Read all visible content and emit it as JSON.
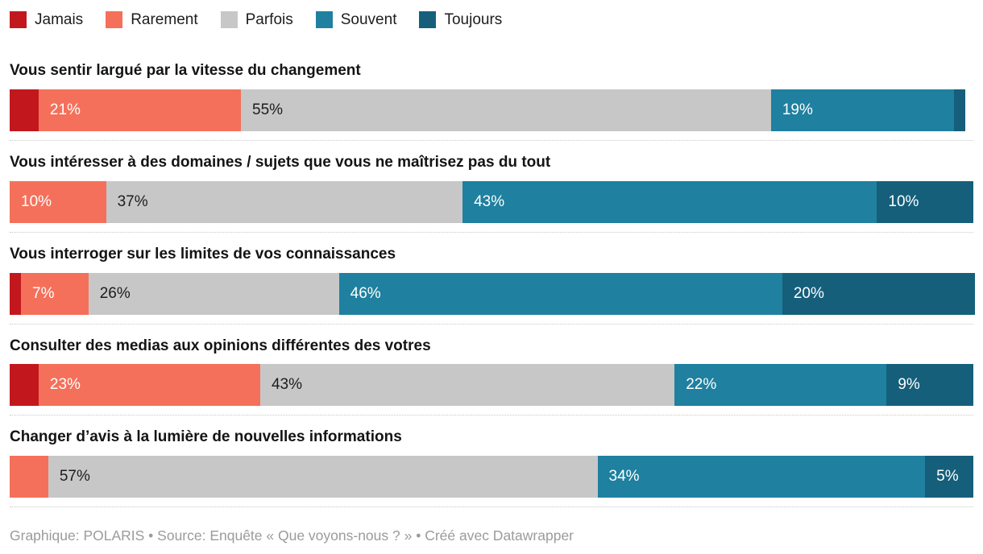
{
  "legend": {
    "items": [
      {
        "label": "Jamais",
        "color": "#c2181d"
      },
      {
        "label": "Rarement",
        "color": "#f4705a"
      },
      {
        "label": "Parfois",
        "color": "#c7c7c7"
      },
      {
        "label": "Souvent",
        "color": "#1f809f"
      },
      {
        "label": "Toujours",
        "color": "#155f7b"
      }
    ]
  },
  "chart_data": {
    "type": "bar",
    "variant": "stacked-horizontal",
    "unit": "%",
    "xlim": [
      0,
      100
    ],
    "legend_position": "top",
    "series": [
      {
        "name": "Jamais",
        "color": "#c2181d",
        "text_color": "#ffffff"
      },
      {
        "name": "Rarement",
        "color": "#f4705a",
        "text_color": "#ffffff"
      },
      {
        "name": "Parfois",
        "color": "#c7c7c7",
        "text_color": "#1d1d1d"
      },
      {
        "name": "Souvent",
        "color": "#1f809f",
        "text_color": "#ffffff"
      },
      {
        "name": "Toujours",
        "color": "#155f7b",
        "text_color": "#ffffff"
      }
    ],
    "rows": [
      {
        "question": "Vous sentir largué par la vitesse du changement",
        "values": [
          3,
          21,
          55,
          19,
          1
        ],
        "labels": [
          "",
          "21%",
          "55%",
          "19%",
          ""
        ]
      },
      {
        "question": "Vous intéresser à des domaines / sujets que vous ne maîtrisez pas du tout",
        "values": [
          0,
          10,
          37,
          43,
          10
        ],
        "labels": [
          "",
          "10%",
          "37%",
          "43%",
          "10%"
        ]
      },
      {
        "question": "Vous interroger sur les limites de vos connaissances",
        "values": [
          1,
          7,
          26,
          46,
          20
        ],
        "labels": [
          "",
          "7%",
          "26%",
          "46%",
          "20%"
        ]
      },
      {
        "question": "Consulter des medias aux opinions différentes des votres",
        "values": [
          3,
          23,
          43,
          22,
          9
        ],
        "labels": [
          "",
          "23%",
          "43%",
          "22%",
          "9%"
        ]
      },
      {
        "question": "Changer d’avis à la lumière de nouvelles informations",
        "values": [
          0,
          4,
          57,
          34,
          5
        ],
        "labels": [
          "",
          "",
          "57%",
          "34%",
          "5%"
        ]
      }
    ]
  },
  "footer": {
    "text": "Graphique: POLARIS • Source: Enquête « Que voyons-nous ? » • Créé avec Datawrapper"
  }
}
